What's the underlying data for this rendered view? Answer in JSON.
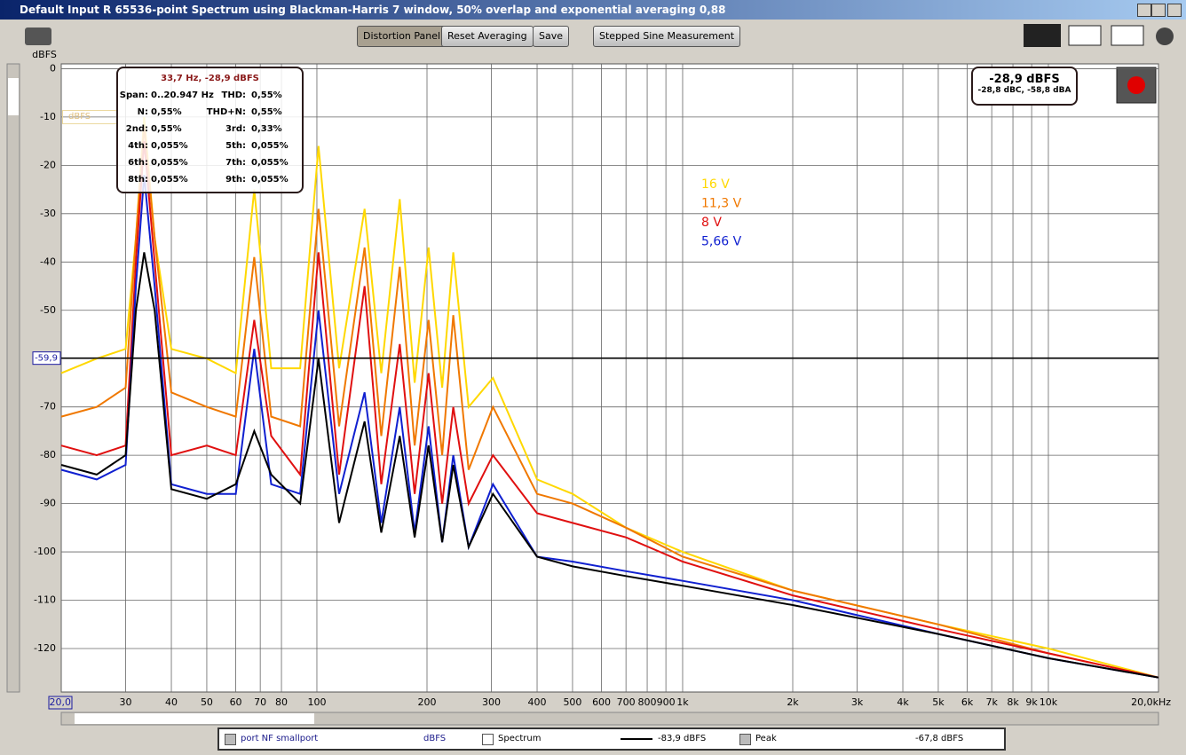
{
  "window": {
    "title": "Default Input R 65536-point Spectrum using Blackman-Harris 7 window, 50% overlap and exponential averaging 0,88"
  },
  "toolbar": {
    "buttons": [
      "Distortion Panel",
      "Reset Averaging",
      "Save",
      "Stepped Sine Measurement"
    ]
  },
  "side_unit": "dBFS",
  "chart_data": {
    "type": "line",
    "ylabel": "dBFS",
    "xscale": "log",
    "grid": true,
    "x": [
      20,
      25,
      30,
      32,
      33.7,
      36,
      40,
      50,
      60,
      67.4,
      75,
      90,
      101,
      115,
      135,
      150,
      168.5,
      185,
      202,
      220,
      236,
      260,
      303,
      400,
      500,
      700,
      1000,
      2000,
      5000,
      10000,
      20000
    ],
    "series": [
      {
        "name": "16 V",
        "color": "#ffd800",
        "values": [
          -63,
          -60,
          -58,
          -35,
          -10,
          -35,
          -58,
          -60,
          -63,
          -25,
          -62,
          -62,
          -16,
          -62,
          -29,
          -63,
          -27,
          -65,
          -37,
          -66,
          -38,
          -70,
          -64,
          -85,
          -88,
          -95,
          -100,
          -108,
          -115,
          -120,
          -126
        ]
      },
      {
        "name": "11,3 V",
        "color": "#f07800",
        "values": [
          -72,
          -70,
          -66,
          -35,
          -12,
          -35,
          -67,
          -70,
          -72,
          -39,
          -72,
          -74,
          -29,
          -74,
          -37,
          -76,
          -41,
          -78,
          -52,
          -80,
          -51,
          -83,
          -70,
          -88,
          -90,
          -95,
          -101,
          -108,
          -115,
          -121,
          -126
        ]
      },
      {
        "name": "8 V",
        "color": "#e01010",
        "values": [
          -78,
          -80,
          -78,
          -40,
          -15,
          -40,
          -80,
          -78,
          -80,
          -52,
          -76,
          -84,
          -38,
          -84,
          -45,
          -86,
          -57,
          -88,
          -63,
          -90,
          -70,
          -90,
          -80,
          -92,
          -94,
          -97,
          -102,
          -109,
          -116,
          -121,
          -126
        ]
      },
      {
        "name": "5,66 V",
        "color": "#1020d0",
        "values": [
          -83,
          -85,
          -82,
          -45,
          -22,
          -45,
          -86,
          -88,
          -88,
          -58,
          -86,
          -88,
          -50,
          -88,
          -67,
          -94,
          -70,
          -96,
          -74,
          -98,
          -80,
          -99,
          -86,
          -101,
          -102,
          -104,
          -106,
          -110,
          -117,
          -122,
          -126
        ]
      },
      {
        "color": "#000000",
        "values": [
          -82,
          -84,
          -80,
          -50,
          -38,
          -50,
          -87,
          -89,
          -86,
          -75,
          -84,
          -90,
          -60,
          -94,
          -73,
          -96,
          -76,
          -97,
          -78,
          -98,
          -82,
          -99,
          -88,
          -101,
          -103,
          -105,
          -107,
          -111,
          -117,
          -122,
          -126
        ]
      }
    ],
    "xlim": [
      20,
      20000
    ],
    "ylim": [
      -129,
      1
    ],
    "xticks": [
      {
        "value": 20,
        "label": "20,0"
      },
      30,
      40,
      50,
      60,
      70,
      80,
      100,
      200,
      300,
      400,
      500,
      600,
      700,
      800,
      900,
      {
        "value": 1000,
        "label": "1k"
      },
      {
        "value": 2000,
        "label": "2k"
      },
      {
        "value": 3000,
        "label": "3k"
      },
      {
        "value": 4000,
        "label": "4k"
      },
      {
        "value": 5000,
        "label": "5k"
      },
      {
        "value": 6000,
        "label": "6k"
      },
      {
        "value": 7000,
        "label": "7k"
      },
      {
        "value": 8000,
        "label": "8k"
      },
      {
        "value": 9000,
        "label": "9k"
      },
      {
        "value": 10000,
        "label": "10k"
      },
      {
        "value": 20000,
        "label": "20,0kHz"
      }
    ],
    "yticks": [
      0,
      -10,
      -20,
      -30,
      -40,
      -50,
      -60,
      -70,
      -80,
      -90,
      -100,
      -110,
      -120
    ],
    "cursor": {
      "value": -59.9,
      "label": "-59,9"
    }
  },
  "info_panel": {
    "header": "33,7 Hz, -28,9 dBFS",
    "rows": [
      [
        "Span:",
        "0..20.947 Hz",
        "THD:",
        "0,55%"
      ],
      [
        "N:",
        "0,55%",
        "THD+N:",
        "0,55%"
      ],
      [
        "2nd:",
        "0,55%",
        "3rd:",
        "0,33%"
      ],
      [
        "4th:",
        "0,055%",
        "5th:",
        "0,055%"
      ],
      [
        "6th:",
        "0,055%",
        "7th:",
        "0,055%"
      ],
      [
        "8th:",
        "0,055%",
        "9th:",
        "0,055%"
      ]
    ]
  },
  "level_panel": {
    "level": "-28,9 dBFS",
    "weighted": "-28,8 dBC, -58,8 dBA"
  },
  "status_bar": {
    "channel": "port NF smallport",
    "unit": "dBFS",
    "spectrum": "Spectrum",
    "spectrum_level": "-83,9 dBFS",
    "peak": "Peak",
    "peak_level": "-67,8 dBFS"
  }
}
